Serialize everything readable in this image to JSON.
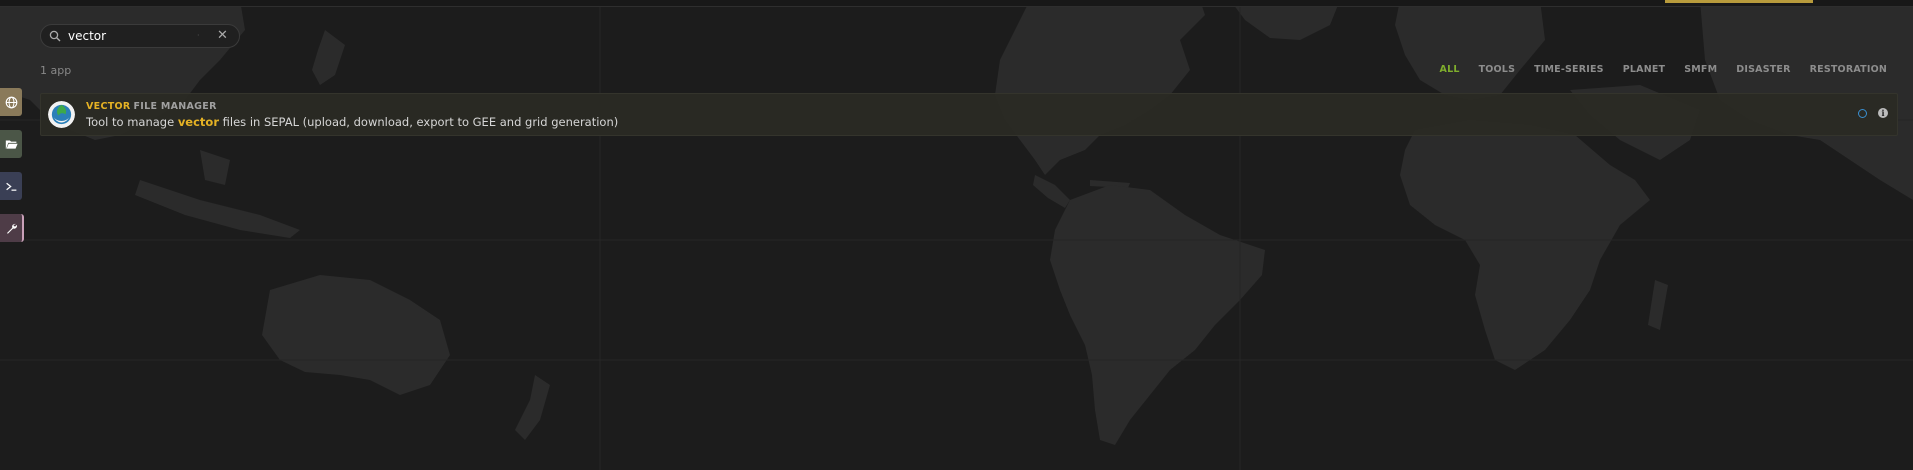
{
  "search": {
    "value": "vector",
    "placeholder": ""
  },
  "result_count": "1 app",
  "filters": [
    {
      "label": "ALL"
    },
    {
      "label": "TOOLS"
    },
    {
      "label": "TIME-SERIES"
    },
    {
      "label": "PLANET"
    },
    {
      "label": "SMFM"
    },
    {
      "label": "DISASTER"
    },
    {
      "label": "RESTORATION"
    }
  ],
  "active_filter": "ALL",
  "app": {
    "title_highlight": "VECTOR",
    "title_rest": "FILE MANAGER",
    "desc_before": "Tool to manage ",
    "desc_highlight": "vector",
    "desc_after": " files in SEPAL (upload, download, export to GEE and grid generation)"
  },
  "sidebar": [
    {
      "icon": "globe-icon"
    },
    {
      "icon": "folder-open-icon"
    },
    {
      "icon": "terminal-icon"
    },
    {
      "icon": "wrench-icon"
    }
  ],
  "colors": {
    "background": "#1c1c1c",
    "highlight": "#e5b224",
    "active_filter": "#7fae2c",
    "top_accent": "#b89b3c"
  }
}
